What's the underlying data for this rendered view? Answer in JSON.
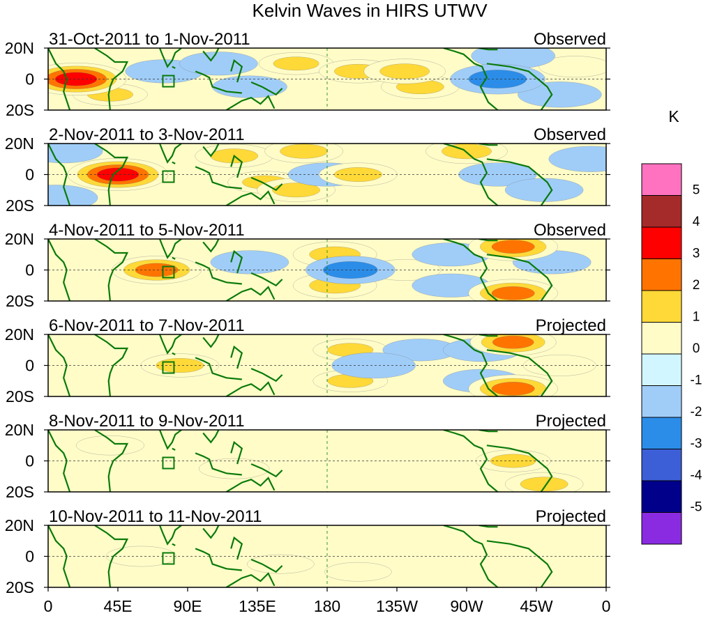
{
  "chart_data": {
    "type": "heatmap",
    "title": "Kelvin Waves in HIRS UTWV",
    "units_label": "K",
    "xlabel": "",
    "ylabel": "",
    "x_range": [
      0,
      360
    ],
    "y_range": [
      -20,
      20
    ],
    "x_tick_labels": [
      "0",
      "45E",
      "90E",
      "135E",
      "180",
      "135W",
      "90W",
      "45W",
      "0"
    ],
    "y_tick_labels": [
      "20N",
      "0",
      "20S"
    ],
    "panels": [
      {
        "date_range": "31-Oct-2011 to 1-Nov-2011",
        "status": "Observed",
        "anomalies": [
          [
            18,
            0,
            3.5
          ],
          [
            0,
            0,
            1.6
          ],
          [
            40,
            -10,
            1.2
          ],
          [
            75,
            5,
            -1.5
          ],
          [
            110,
            10,
            -1.5
          ],
          [
            130,
            -5,
            -1.2
          ],
          [
            160,
            10,
            1.2
          ],
          [
            200,
            5,
            1.5
          ],
          [
            230,
            5,
            1.8
          ],
          [
            240,
            -5,
            1.5
          ],
          [
            290,
            0,
            -3.0
          ],
          [
            300,
            15,
            -2.0
          ],
          [
            330,
            -10,
            -2.0
          ],
          [
            340,
            8,
            1.0
          ]
        ]
      },
      {
        "date_range": "2-Nov-2011 to 3-Nov-2011",
        "status": "Observed",
        "anomalies": [
          [
            45,
            0,
            3.5
          ],
          [
            10,
            15,
            -1.5
          ],
          [
            5,
            -15,
            -2.0
          ],
          [
            120,
            12,
            1.5
          ],
          [
            140,
            -5,
            1.2
          ],
          [
            165,
            15,
            1.5
          ],
          [
            160,
            -10,
            1.5
          ],
          [
            180,
            0,
            -1.5
          ],
          [
            200,
            0,
            1.5
          ],
          [
            270,
            15,
            1.8
          ],
          [
            290,
            0,
            -1.5
          ],
          [
            320,
            -10,
            -1.5
          ],
          [
            350,
            10,
            -2.0
          ]
        ]
      },
      {
        "date_range": "4-Nov-2011 to 5-Nov-2011",
        "status": "Observed",
        "anomalies": [
          [
            70,
            0,
            2.5
          ],
          [
            40,
            5,
            -1.0
          ],
          [
            130,
            5,
            -1.5
          ],
          [
            195,
            0,
            -2.5
          ],
          [
            185,
            10,
            2.0
          ],
          [
            185,
            -10,
            2.0
          ],
          [
            230,
            0,
            1.0
          ],
          [
            260,
            10,
            -1.5
          ],
          [
            260,
            -10,
            -1.5
          ],
          [
            300,
            15,
            2.5
          ],
          [
            300,
            -15,
            2.5
          ],
          [
            325,
            5,
            -1.5
          ]
        ]
      },
      {
        "date_range": "6-Nov-2011 to 7-Nov-2011",
        "status": "Projected",
        "anomalies": [
          [
            85,
            0,
            1.5
          ],
          [
            210,
            0,
            -2.0
          ],
          [
            195,
            10,
            1.2
          ],
          [
            195,
            -10,
            1.2
          ],
          [
            300,
            15,
            2.2
          ],
          [
            300,
            -15,
            2.5
          ],
          [
            280,
            10,
            -1.5
          ],
          [
            280,
            -10,
            -1.5
          ],
          [
            240,
            10,
            -1.2
          ],
          [
            330,
            0,
            1.0
          ],
          [
            150,
            -10,
            -1.0
          ]
        ]
      },
      {
        "date_range": "8-Nov-2011 to 9-Nov-2011",
        "status": "Projected",
        "anomalies": [
          [
            300,
            0,
            1.2
          ],
          [
            320,
            -15,
            1.5
          ],
          [
            200,
            0,
            -1.0
          ],
          [
            120,
            -5,
            0.8
          ],
          [
            260,
            5,
            -1.0
          ],
          [
            40,
            10,
            0.6
          ],
          [
            230,
            -10,
            -1.0
          ]
        ]
      },
      {
        "date_range": "10-Nov-2011 to 11-Nov-2011",
        "status": "Projected",
        "anomalies": [
          [
            60,
            0,
            0.8
          ],
          [
            150,
            -5,
            0.5
          ],
          [
            240,
            0,
            -0.8
          ],
          [
            280,
            10,
            -1.0
          ],
          [
            320,
            0,
            -0.8
          ],
          [
            200,
            -10,
            0.5
          ]
        ]
      }
    ],
    "colorbar": {
      "tick_labels": [
        "5",
        "4",
        "3",
        "2",
        "1",
        "0",
        "-1",
        "-2",
        "-3",
        "-4",
        "-5"
      ],
      "bins": [
        {
          "min": 5,
          "max": 6,
          "color": "#ff72c0"
        },
        {
          "min": 4,
          "max": 5,
          "color": "#a52a2a"
        },
        {
          "min": 3,
          "max": 4,
          "color": "#ff0000"
        },
        {
          "min": 2,
          "max": 3,
          "color": "#ff7400"
        },
        {
          "min": 1,
          "max": 2,
          "color": "#ffd938"
        },
        {
          "min": 0,
          "max": 1,
          "color": "#fffcc8"
        },
        {
          "min": -1,
          "max": 0,
          "color": "#d2f6ff"
        },
        {
          "min": -2,
          "max": -1,
          "color": "#a0cdf8"
        },
        {
          "min": -3,
          "max": -2,
          "color": "#2b8de8"
        },
        {
          "min": -4,
          "max": -3,
          "color": "#3c5fd8"
        },
        {
          "min": -5,
          "max": -4,
          "color": "#00008b"
        },
        {
          "min": -6,
          "max": -5,
          "color": "#8a2be2"
        }
      ]
    },
    "coastline_color": "#0a7a0a"
  }
}
